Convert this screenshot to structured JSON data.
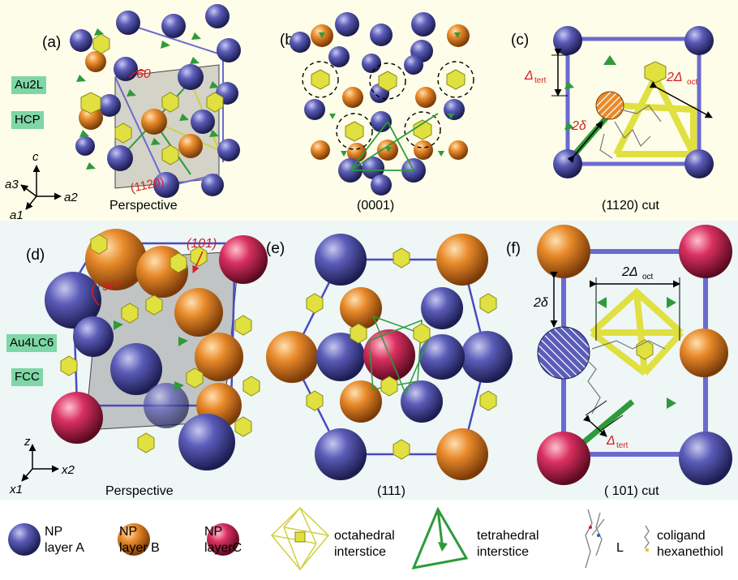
{
  "panels": {
    "a": {
      "label": "(a)",
      "angle": "60",
      "plane": "(1120)",
      "caption": "Perspective",
      "tag_lattice": "Au2L",
      "tag_structure": "HCP",
      "axes": {
        "c": "c",
        "a1": "a1",
        "a2": "a2",
        "a3": "a3"
      }
    },
    "b": {
      "label": "(b)",
      "caption": "(0001)"
    },
    "c": {
      "label": "(c)",
      "caption": "(1120) cut",
      "d_tert": "Δ",
      "d_tert_sub": "tert",
      "d_oct": "2Δ",
      "d_oct_sub": "oct",
      "delta": "2δ"
    },
    "d": {
      "label": "(d)",
      "angle": "90°",
      "plane": "(101)",
      "caption": "Perspective",
      "tag_lattice": "Au4LC6",
      "tag_structure": "FCC",
      "axes": {
        "z": "z",
        "x1": "x1",
        "x2": "x2"
      }
    },
    "e": {
      "label": "(e)",
      "caption": "(111)"
    },
    "f": {
      "label": "(f)",
      "caption": "( 101) cut",
      "d_oct": "2Δ",
      "d_oct_sub": "oct",
      "delta": "2δ",
      "d_tert": "Δ",
      "d_tert_sub": "tert"
    }
  },
  "legend": {
    "np_a": [
      "NP",
      "layer A"
    ],
    "np_b": [
      "NP",
      "layer B"
    ],
    "np_c": [
      "NP",
      "layerC"
    ],
    "octa": [
      "octahedral",
      "interstice"
    ],
    "tetra": [
      "tetrahedral",
      "interstice"
    ],
    "ligand": "L",
    "coligand": [
      "coligand",
      "hexanethiol"
    ]
  },
  "colors": {
    "layer_a": "#5a5cb8",
    "layer_b": "#e88a2a",
    "layer_c": "#d93060",
    "octahedral": "#e0e040",
    "tetrahedral": "#2e9a3a",
    "bond": "#6a6ad0",
    "annotation": "#d42020"
  }
}
